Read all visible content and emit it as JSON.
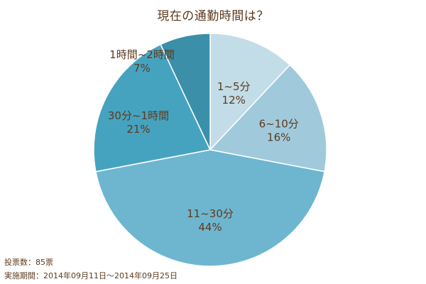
{
  "chart_data": {
    "type": "pie",
    "title": "現在の通勤時間は？",
    "categories": [
      "1~5分",
      "6~10分",
      "11~30分",
      "30分~1時間",
      "1時間~2時間"
    ],
    "values": [
      12,
      16,
      44,
      21,
      7
    ],
    "labels": [
      "12%",
      "16%",
      "44%",
      "21%",
      "7%"
    ],
    "colors": [
      "#c2dde7",
      "#a0cadb",
      "#6eb6cf",
      "#46a3c0",
      "#3b8fa9"
    ],
    "start_angle": "12 o'clock",
    "direction": "clockwise",
    "legend": "none (labels inside slices)"
  },
  "title": "現在の通勤時間は？",
  "footer": {
    "votes": "投票数：85票",
    "period": "実施期間：2014年09月11日～2014年09月25日"
  }
}
